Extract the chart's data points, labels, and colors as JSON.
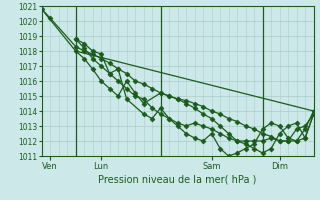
{
  "title": "",
  "xlabel": "Pression niveau de la mer( hPa )",
  "ylabel": "",
  "background_color": "#cce8e8",
  "grid_color": "#aacccc",
  "line_color": "#1a5c1a",
  "ylim": [
    1011,
    1021
  ],
  "yticks": [
    1011,
    1012,
    1013,
    1014,
    1015,
    1016,
    1017,
    1018,
    1019,
    1020,
    1021
  ],
  "xlim": [
    0,
    16
  ],
  "xtick_positions": [
    0.5,
    3.5,
    10.0,
    14.0
  ],
  "xtick_labels": [
    "Ven",
    "Lun",
    "Sam",
    "Dim"
  ],
  "vline_positions": [
    2,
    7,
    13
  ],
  "lines": [
    {
      "x": [
        0,
        0.5,
        2,
        2.5,
        3.0,
        3.5,
        4.0,
        4.5,
        5.0,
        5.5,
        6.0,
        6.5,
        7.0,
        7.5,
        8.0,
        8.5,
        9.0,
        9.5,
        10.0,
        10.5,
        11.0,
        11.5,
        12.0,
        12.5,
        13.0,
        13.5,
        14.0,
        14.5,
        15.0,
        15.5,
        16.0
      ],
      "y": [
        1020.8,
        1020.2,
        1018.3,
        1018.0,
        1017.8,
        1017.5,
        1017.2,
        1016.8,
        1016.5,
        1016.0,
        1015.8,
        1015.5,
        1015.2,
        1015.0,
        1014.8,
        1014.7,
        1014.5,
        1014.3,
        1014.0,
        1013.8,
        1013.5,
        1013.3,
        1013.0,
        1012.8,
        1012.5,
        1012.3,
        1012.0,
        1012.0,
        1012.0,
        1012.2,
        1013.8
      ]
    },
    {
      "x": [
        2,
        2.5,
        3.0,
        3.5,
        4.0,
        4.5,
        5.0,
        5.5,
        6.0,
        6.5,
        7.0,
        7.5,
        8.0,
        8.5,
        9.0,
        9.5,
        10.0,
        10.5,
        11.0,
        11.5,
        12.0,
        12.5,
        13.0,
        13.5,
        14.0,
        14.5,
        15.0,
        15.5,
        16.0
      ],
      "y": [
        1018.8,
        1018.5,
        1018.0,
        1017.8,
        1016.5,
        1016.0,
        1015.5,
        1015.0,
        1014.8,
        1014.2,
        1013.8,
        1013.5,
        1013.2,
        1013.0,
        1013.2,
        1013.0,
        1012.8,
        1012.5,
        1012.2,
        1012.0,
        1012.0,
        1012.0,
        1012.0,
        1012.2,
        1012.0,
        1012.0,
        1012.8,
        1013.0,
        1013.8
      ]
    },
    {
      "x": [
        2,
        2.5,
        3.0,
        3.5,
        4.0,
        4.5,
        5.0,
        5.5,
        6.0,
        7.0,
        7.5,
        8.0,
        8.5,
        9.0,
        9.5,
        10.0,
        10.5,
        11.0,
        11.5,
        12.0,
        12.5,
        13.0,
        13.5,
        14.0,
        14.5,
        15.0,
        15.5,
        16.0
      ],
      "y": [
        1018.0,
        1017.5,
        1016.8,
        1016.0,
        1015.5,
        1015.0,
        1016.0,
        1015.2,
        1014.5,
        1015.2,
        1015.0,
        1014.8,
        1014.5,
        1014.2,
        1013.8,
        1013.5,
        1013.0,
        1012.5,
        1012.0,
        1011.8,
        1011.5,
        1011.2,
        1011.5,
        1012.5,
        1013.0,
        1013.2,
        1012.2,
        1013.8
      ]
    },
    {
      "x": [
        2,
        2.5,
        3.0,
        3.5,
        4.0,
        4.5,
        5.0,
        6.0,
        6.5,
        7.0,
        7.5,
        8.0,
        8.5,
        9.0,
        9.5,
        10.0,
        10.5,
        11.0,
        11.5,
        12.0,
        12.5,
        13.0,
        13.5,
        14.0,
        14.5,
        15.0,
        15.5,
        16.0
      ],
      "y": [
        1018.8,
        1018.2,
        1017.5,
        1017.0,
        1016.5,
        1016.8,
        1014.8,
        1013.8,
        1013.5,
        1014.2,
        1013.5,
        1013.0,
        1012.5,
        1012.2,
        1012.0,
        1012.5,
        1011.5,
        1011.0,
        1011.2,
        1011.5,
        1011.8,
        1012.8,
        1013.2,
        1013.0,
        1012.2,
        1012.0,
        1012.8,
        1014.0
      ]
    },
    {
      "x": [
        0,
        2,
        16
      ],
      "y": [
        1020.8,
        1018.0,
        1014.0
      ],
      "no_marker": true
    }
  ],
  "marker": "D",
  "markersize": 2.5,
  "linewidth": 0.9
}
